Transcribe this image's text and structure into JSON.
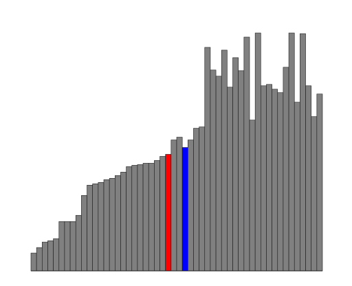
{
  "chart_data": {
    "type": "bar",
    "title": "",
    "xlabel": "",
    "ylabel": "",
    "ylim": [
      0,
      350
    ],
    "grid": false,
    "legend": "none",
    "axes_visible": false,
    "colors": {
      "default": "#808080",
      "highlight_red": "#ff0000",
      "highlight_blue": "#0000ff",
      "outline": "#1a1a1a",
      "background": "#ffffff"
    },
    "values": [
      26,
      34,
      42,
      44,
      47,
      72,
      72,
      72,
      81,
      110,
      125,
      127,
      129,
      133,
      135,
      139,
      144,
      152,
      154,
      155,
      157,
      157,
      161,
      167,
      170,
      191,
      195,
      180,
      191,
      208,
      210,
      326,
      293,
      284,
      322,
      268,
      311,
      292,
      341,
      220,
      347,
      270,
      272,
      265,
      260,
      297,
      347,
      246,
      346,
      270,
      225,
      258
    ],
    "highlights": [
      {
        "index": 24,
        "color": "#ff0000"
      },
      {
        "index": 27,
        "color": "#0000ff"
      }
    ]
  }
}
